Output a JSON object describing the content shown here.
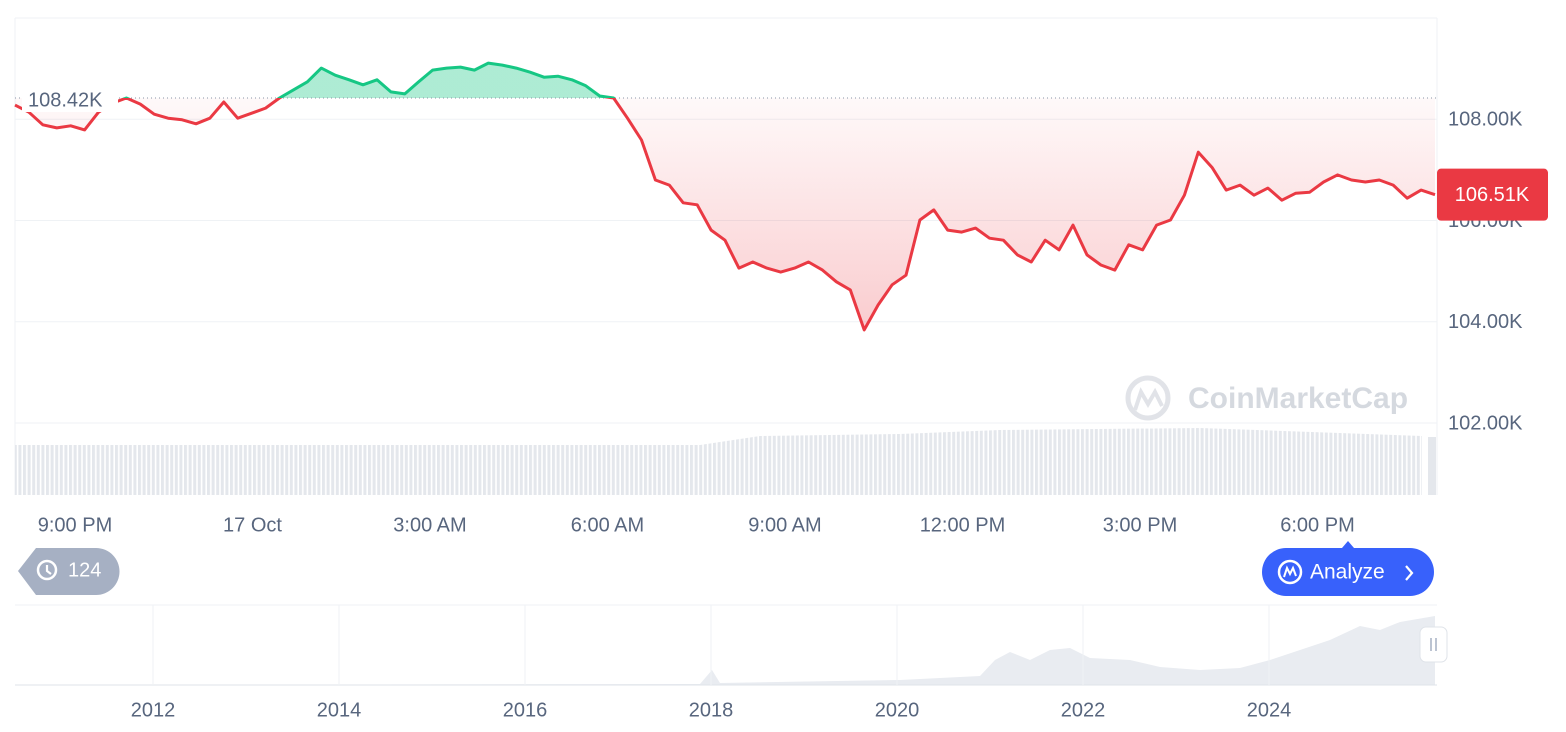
{
  "chart_data": {
    "type": "line",
    "values": [
      108280,
      108140,
      107890,
      107830,
      107870,
      107790,
      108140,
      108320,
      108420,
      108300,
      108100,
      108020,
      107990,
      107910,
      108020,
      108340,
      108020,
      108120,
      108220,
      108420,
      108580,
      108740,
      109010,
      108870,
      108780,
      108680,
      108780,
      108540,
      108500,
      108740,
      108970,
      109010,
      109030,
      108970,
      109110,
      109070,
      109010,
      108930,
      108830,
      108850,
      108780,
      108660,
      108460,
      108420,
      108020,
      107590,
      106800,
      106700,
      106350,
      106310,
      105810,
      105610,
      105060,
      105180,
      105060,
      104980,
      105060,
      105180,
      105020,
      104790,
      104630,
      103840,
      104330,
      104730,
      104920,
      106010,
      106210,
      105810,
      105770,
      105850,
      105650,
      105610,
      105320,
      105180,
      105610,
      105420,
      105910,
      105320,
      105120,
      105020,
      105520,
      105420,
      105910,
      106010,
      106500,
      107350,
      107040,
      106600,
      106700,
      106500,
      106640,
      106400,
      106540,
      106560,
      106760,
      106900,
      106800,
      106760,
      106800,
      106700,
      106440,
      106600,
      106510
    ],
    "baseline": {
      "value": 108420,
      "label": "108.42K"
    },
    "current_price": {
      "value": 106510,
      "label": "106.51K"
    },
    "ylim": [
      102000,
      110000
    ],
    "yticks": [
      {
        "value": 102000,
        "label": "102.00K"
      },
      {
        "value": 104000,
        "label": "104.00K"
      },
      {
        "value": 106000,
        "label": "106.00K"
      },
      {
        "value": 108000,
        "label": "108.00K"
      }
    ],
    "x_tick_labels": [
      "9:00 PM",
      "17 Oct",
      "3:00 AM",
      "6:00 AM",
      "9:00 AM",
      "12:00 PM",
      "3:00 PM",
      "6:00 PM"
    ],
    "up_color": "#16c784",
    "down_color": "#ea3943",
    "grid": true,
    "watermark": "CoinMarketCap",
    "navigator_labels": [
      "2012",
      "2014",
      "2016",
      "2018",
      "2020",
      "2022",
      "2024"
    ]
  },
  "history_badge": "124",
  "analyze_button": "Analyze"
}
